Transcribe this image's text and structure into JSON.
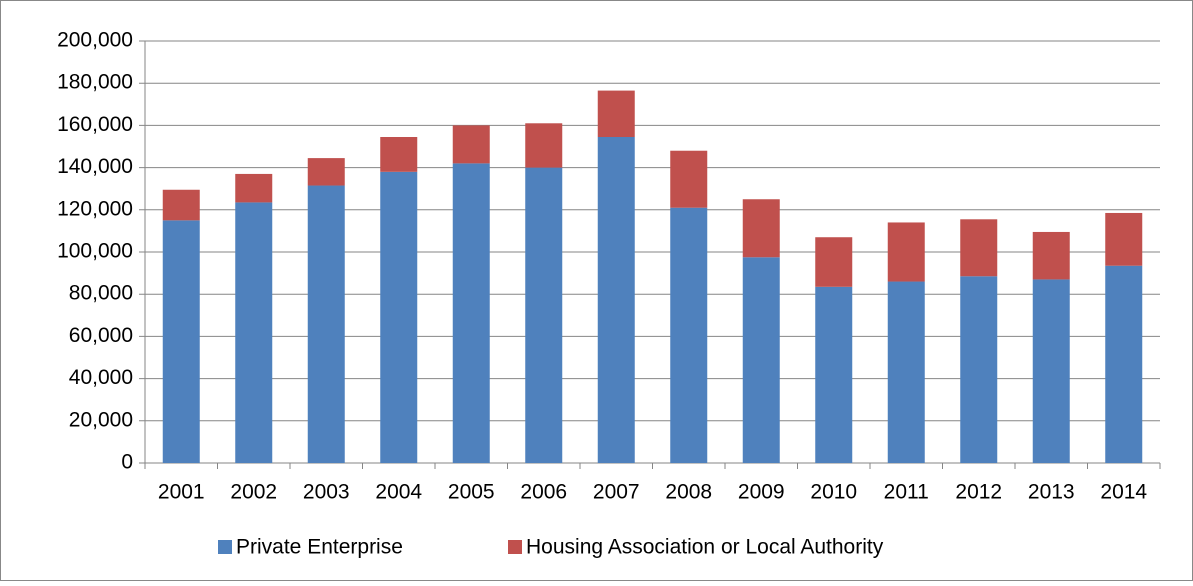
{
  "chart_data": {
    "type": "stacked_bar",
    "categories": [
      "2001",
      "2002",
      "2003",
      "2004",
      "2005",
      "2006",
      "2007",
      "2008",
      "2009",
      "2010",
      "2011",
      "2012",
      "2013",
      "2014"
    ],
    "series": [
      {
        "name": "Private Enterprise",
        "color": "#4f81bd",
        "values": [
          115000,
          123500,
          131500,
          138000,
          142000,
          140000,
          154500,
          121000,
          97500,
          83500,
          86000,
          88500,
          87000,
          93500
        ]
      },
      {
        "name": "Housing Association or Local Authority",
        "color": "#c0504d",
        "values": [
          14500,
          13500,
          13000,
          16500,
          18000,
          21000,
          22000,
          27000,
          27500,
          23500,
          28000,
          27000,
          22500,
          25000
        ]
      }
    ],
    "ylim": [
      0,
      200000
    ],
    "yticks": [
      0,
      {
        "value": 20000,
        "label": "20,000"
      },
      {
        "value": 40000,
        "label": "40,000"
      },
      {
        "value": 60000,
        "label": "60,000"
      },
      {
        "value": 80000,
        "label": "80,000"
      },
      {
        "value": 100000,
        "label": "100,000"
      },
      {
        "value": 120000,
        "label": "120,000"
      },
      {
        "value": 140000,
        "label": "140,000"
      },
      {
        "value": 160000,
        "label": "160,000"
      },
      {
        "value": 180000,
        "label": "180,000"
      },
      {
        "value": 200000,
        "label": "200,000"
      }
    ],
    "grid": true,
    "legend": "bottom"
  }
}
